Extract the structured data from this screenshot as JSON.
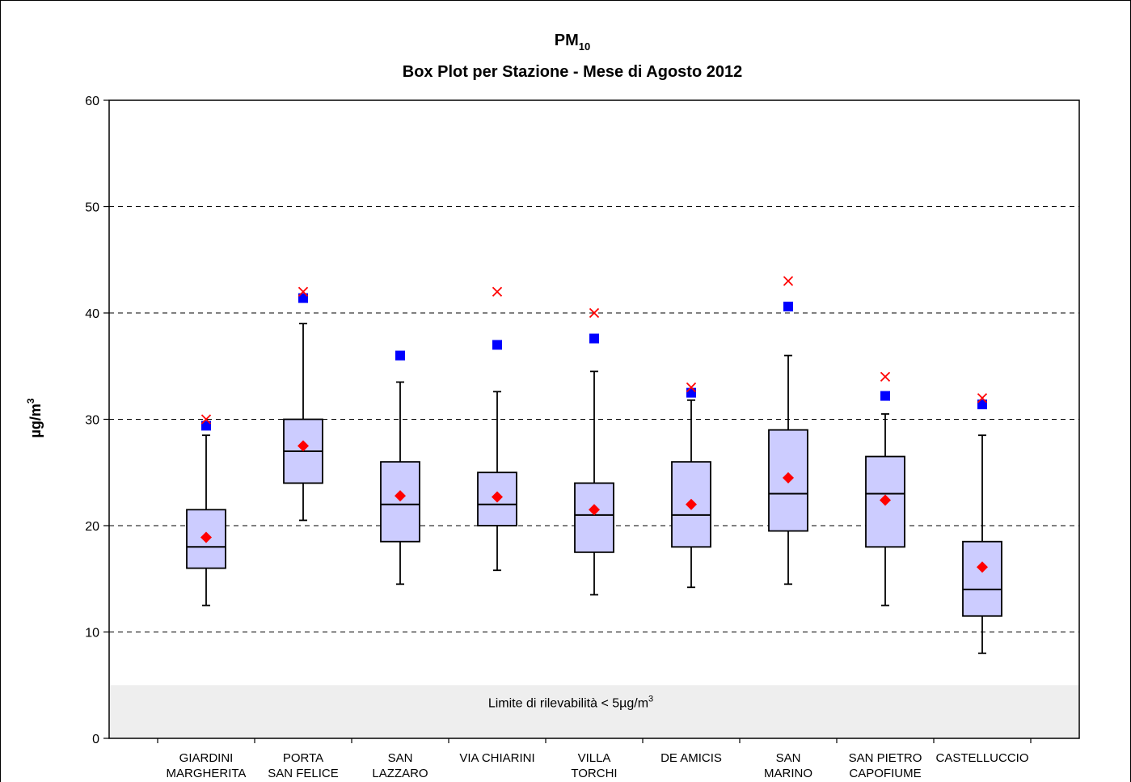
{
  "chart_data": {
    "type": "boxplot",
    "title": "PM",
    "title_subscript": "10",
    "subtitle": "Box Plot per Stazione - Mese di Agosto 2012",
    "ylabel": "µg/m",
    "ylabel_superscript": "3",
    "ylim": [
      0,
      60
    ],
    "yticks": [
      0,
      10,
      20,
      30,
      40,
      50,
      60
    ],
    "grid": "dashed horizontal",
    "detection_limit": {
      "value": 5,
      "label": "Limite di rilevabilità < 5µg/m",
      "label_superscript": "3"
    },
    "categories": [
      [
        "GIARDINI",
        "MARGHERITA"
      ],
      [
        "PORTA",
        "SAN FELICE"
      ],
      [
        "SAN",
        "LAZZARO"
      ],
      [
        "VIA CHIARINI"
      ],
      [
        "VILLA",
        "TORCHI"
      ],
      [
        "DE AMICIS"
      ],
      [
        "SAN",
        "MARINO"
      ],
      [
        "SAN PIETRO",
        "CAPOFIUME"
      ],
      [
        "CASTELLUCCIO"
      ]
    ],
    "boxes": [
      {
        "min": 12.5,
        "q1": 16.0,
        "median": 18.0,
        "q3": 21.5,
        "whisker_high": 28.5,
        "mean": 18.9,
        "p98": 29.4,
        "max": 30.0
      },
      {
        "min": 20.5,
        "q1": 24.0,
        "median": 27.0,
        "q3": 30.0,
        "whisker_high": 39.0,
        "mean": 27.5,
        "p98": 41.4,
        "max": 42.0
      },
      {
        "min": 14.5,
        "q1": 18.5,
        "median": 22.0,
        "q3": 26.0,
        "whisker_high": 33.5,
        "mean": 22.8,
        "p98": 36.0,
        "max": null
      },
      {
        "min": 15.8,
        "q1": 20.0,
        "median": 22.0,
        "q3": 25.0,
        "whisker_high": 32.6,
        "mean": 22.7,
        "p98": 37.0,
        "max": 42.0
      },
      {
        "min": 13.5,
        "q1": 17.5,
        "median": 21.0,
        "q3": 24.0,
        "whisker_high": 34.5,
        "mean": 21.5,
        "p98": 37.6,
        "max": 40.0
      },
      {
        "min": 14.2,
        "q1": 18.0,
        "median": 21.0,
        "q3": 26.0,
        "whisker_high": 31.8,
        "mean": 22.0,
        "p98": 32.5,
        "max": 33.0
      },
      {
        "min": 14.5,
        "q1": 19.5,
        "median": 23.0,
        "q3": 29.0,
        "whisker_high": 36.0,
        "mean": 24.5,
        "p98": 40.6,
        "max": 43.0
      },
      {
        "min": 12.5,
        "q1": 18.0,
        "median": 23.0,
        "q3": 26.5,
        "whisker_high": 30.5,
        "mean": 22.4,
        "p98": 32.2,
        "max": 34.0
      },
      {
        "min": 8.0,
        "q1": 11.5,
        "median": 14.0,
        "q3": 18.5,
        "whisker_high": 28.5,
        "mean": 16.1,
        "p98": 31.4,
        "max": 32.0
      }
    ],
    "colors": {
      "box_fill": "#ccccff",
      "box_stroke": "#000000",
      "mean_marker": "#ff0000",
      "p98_marker": "#0000ff",
      "max_marker": "#ff0000",
      "limit_band": "#eeeeee",
      "grid": "#000000"
    }
  }
}
